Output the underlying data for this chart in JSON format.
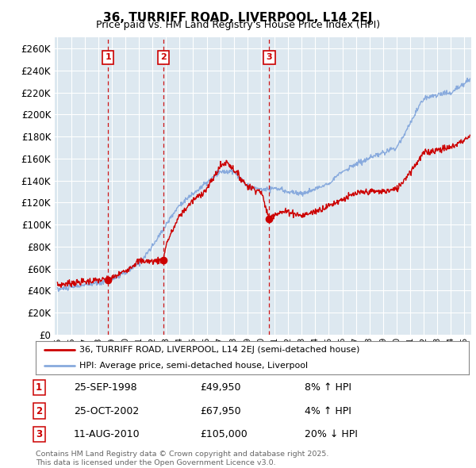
{
  "title": "36, TURRIFF ROAD, LIVERPOOL, L14 2EJ",
  "subtitle": "Price paid vs. HM Land Registry's House Price Index (HPI)",
  "ylabel_ticks": [
    "£0",
    "£20K",
    "£40K",
    "£60K",
    "£80K",
    "£100K",
    "£120K",
    "£140K",
    "£160K",
    "£180K",
    "£200K",
    "£220K",
    "£240K",
    "£260K"
  ],
  "ytick_values": [
    0,
    20000,
    40000,
    60000,
    80000,
    100000,
    120000,
    140000,
    160000,
    180000,
    200000,
    220000,
    240000,
    260000
  ],
  "ylim": [
    0,
    270000
  ],
  "xlim_start": 1994.8,
  "xlim_end": 2025.5,
  "legend_line1": "36, TURRIFF ROAD, LIVERPOOL, L14 2EJ (semi-detached house)",
  "legend_line2": "HPI: Average price, semi-detached house, Liverpool",
  "sale1_date": 1998.73,
  "sale1_price": 49950,
  "sale1_label": "1",
  "sale2_date": 2002.82,
  "sale2_price": 67950,
  "sale2_label": "2",
  "sale3_date": 2010.61,
  "sale3_price": 105000,
  "sale3_label": "3",
  "hpi_color": "#88aadd",
  "price_color": "#cc0000",
  "sale_marker_color": "#cc0000",
  "dashed_line_color": "#cc0000",
  "background_color": "#ffffff",
  "plot_bg_color": "#dde8f0",
  "grid_color": "#ffffff",
  "table_row1_date": "25-SEP-1998",
  "table_row1_price": "£49,950",
  "table_row1_hpi": "8% ↑ HPI",
  "table_row2_date": "25-OCT-2002",
  "table_row2_price": "£67,950",
  "table_row2_hpi": "4% ↑ HPI",
  "table_row3_date": "11-AUG-2010",
  "table_row3_price": "£105,000",
  "table_row3_hpi": "20% ↓ HPI",
  "footnote": "Contains HM Land Registry data © Crown copyright and database right 2025.\nThis data is licensed under the Open Government Licence v3.0."
}
